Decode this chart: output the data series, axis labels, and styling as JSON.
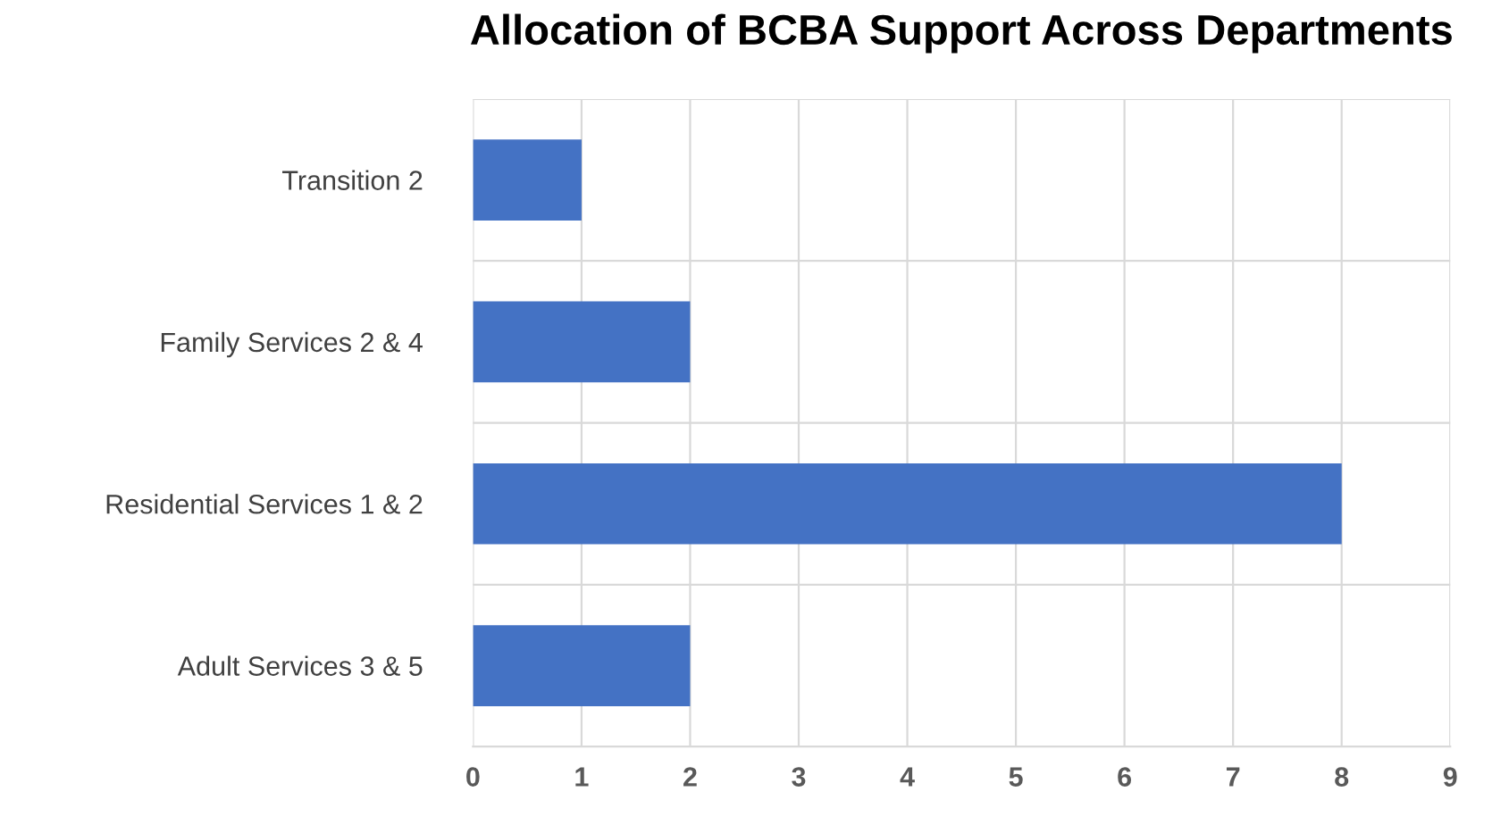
{
  "chart_data": {
    "type": "bar",
    "orientation": "horizontal",
    "title": "Allocation of BCBA Support Across Departments",
    "categories": [
      "Transition 2",
      "Family Services 2 & 4",
      "Residential Services 1 & 2",
      "Adult Services 3 & 5"
    ],
    "values": [
      1,
      2,
      8,
      2
    ],
    "color": "#4472c4",
    "xlim": [
      0,
      9
    ],
    "xticks": [
      0,
      1,
      2,
      3,
      4,
      5,
      6,
      7,
      8,
      9
    ],
    "grid": true
  }
}
